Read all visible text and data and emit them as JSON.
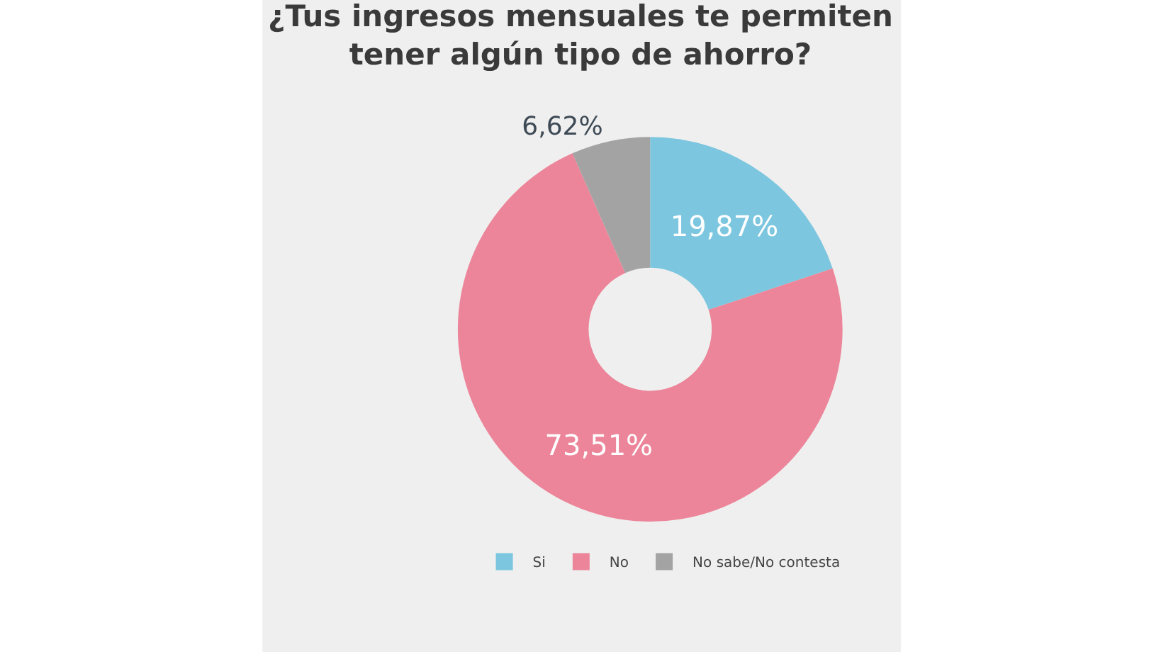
{
  "chart_data": {
    "type": "donut",
    "title": "¿Tus ingresos mensuales te permiten\ntener algún tipo de ahorro?",
    "categories": [
      "Si",
      "No",
      "No sabe/No contesta"
    ],
    "values": [
      19.87,
      73.51,
      6.62
    ],
    "colors": [
      "#7cc6df",
      "#ec8599",
      "#a3a3a3"
    ],
    "value_labels": [
      "19,87%",
      "73,51%",
      "6,62%"
    ],
    "legend": "bottom"
  }
}
